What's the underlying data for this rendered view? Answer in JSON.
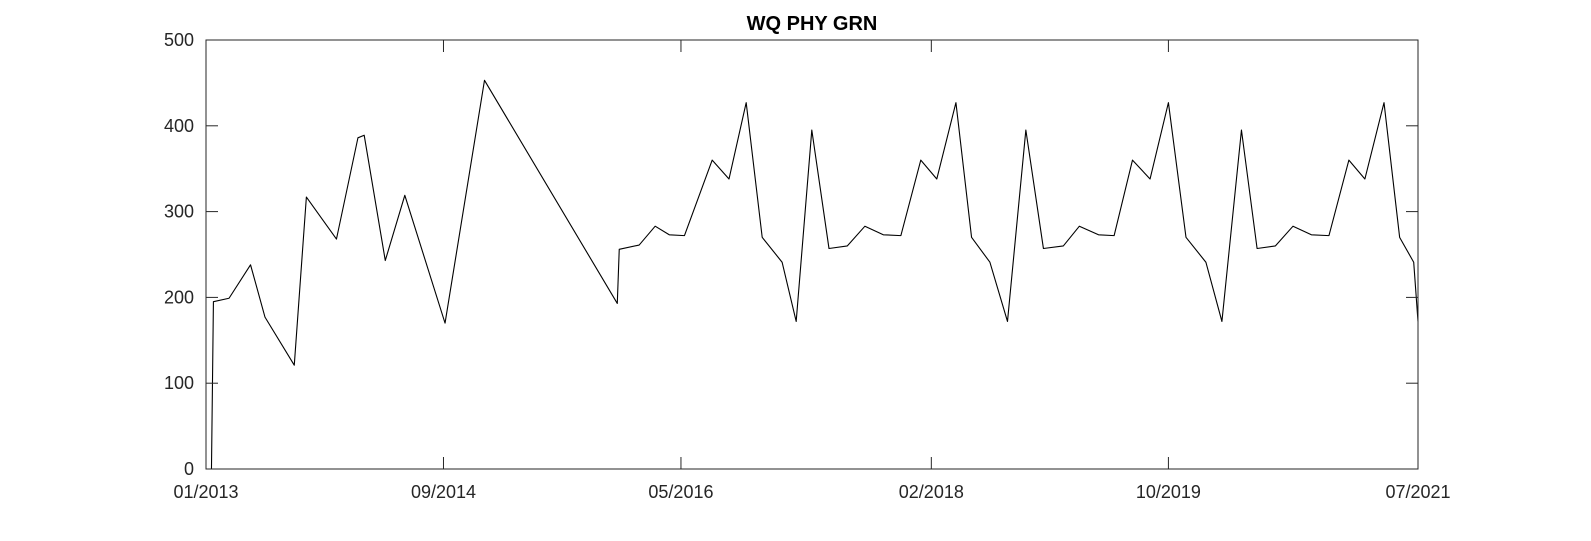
{
  "chart_data": {
    "type": "line",
    "title": "WQ PHY GRN",
    "xlabel": "",
    "ylabel": "",
    "x_axis_kind": "date",
    "xlim": [
      "2013-01-01",
      "2021-07-01"
    ],
    "ylim": [
      0,
      500
    ],
    "grid": false,
    "line_color": "#000000",
    "x_ticks": [
      {
        "value": "2013-01-01",
        "label": "01/2013"
      },
      {
        "value": "2014-09-01",
        "label": "09/2014"
      },
      {
        "value": "2016-05-01",
        "label": "05/2016"
      },
      {
        "value": "2018-02-01",
        "label": "02/2018"
      },
      {
        "value": "2019-10-01",
        "label": "10/2019"
      },
      {
        "value": "2021-07-01",
        "label": "07/2021"
      }
    ],
    "y_ticks": [
      0,
      100,
      200,
      300,
      400,
      500
    ],
    "series": [
      {
        "x": [
          "2013-01-15",
          "2013-01-20",
          "2013-03-01",
          "2013-04-25",
          "2013-06-01",
          "2013-08-15",
          "2013-09-15",
          "2013-12-01",
          "2014-01-25",
          "2014-02-10",
          "2014-04-05",
          "2014-05-25",
          "2014-09-05",
          "2014-12-15",
          "2015-11-20",
          "2015-11-25",
          "2016-01-15",
          "2016-02-25",
          "2016-04-01",
          "2016-05-10",
          "2016-07-20",
          "2016-09-01",
          "2016-10-15",
          "2016-11-25",
          "2017-01-15",
          "2017-02-20",
          "2017-04-01",
          "2017-05-15",
          "2017-07-01",
          "2017-08-15",
          "2017-10-01",
          "2017-11-15",
          "2018-01-05",
          "2018-02-15",
          "2018-04-05",
          "2018-05-15",
          "2018-07-01",
          "2018-08-15",
          "2018-10-01",
          "2018-11-15",
          "2019-01-05",
          "2019-02-15",
          "2019-04-05",
          "2019-05-15",
          "2019-07-01",
          "2019-08-15",
          "2019-10-01",
          "2019-11-15",
          "2020-01-05",
          "2020-02-15",
          "2020-04-05",
          "2020-05-15",
          "2020-07-01",
          "2020-08-15",
          "2020-10-01",
          "2020-11-15",
          "2021-01-05",
          "2021-02-15",
          "2021-04-05",
          "2021-05-15",
          "2021-06-20",
          "2021-07-01"
        ],
        "y": [
          0,
          195,
          199,
          238,
          177,
          121,
          317,
          268,
          386,
          389,
          243,
          319,
          170,
          453,
          193,
          256,
          261,
          283,
          273,
          272,
          360,
          338,
          427,
          270,
          241,
          172,
          395,
          257,
          260,
          283,
          273,
          272,
          360,
          338,
          427,
          270,
          241,
          172,
          395,
          257,
          260,
          283,
          273,
          272,
          360,
          338,
          427,
          270,
          241,
          172,
          395,
          257,
          260,
          283,
          273,
          272,
          360,
          338,
          427,
          270,
          241,
          172
        ]
      }
    ]
  }
}
